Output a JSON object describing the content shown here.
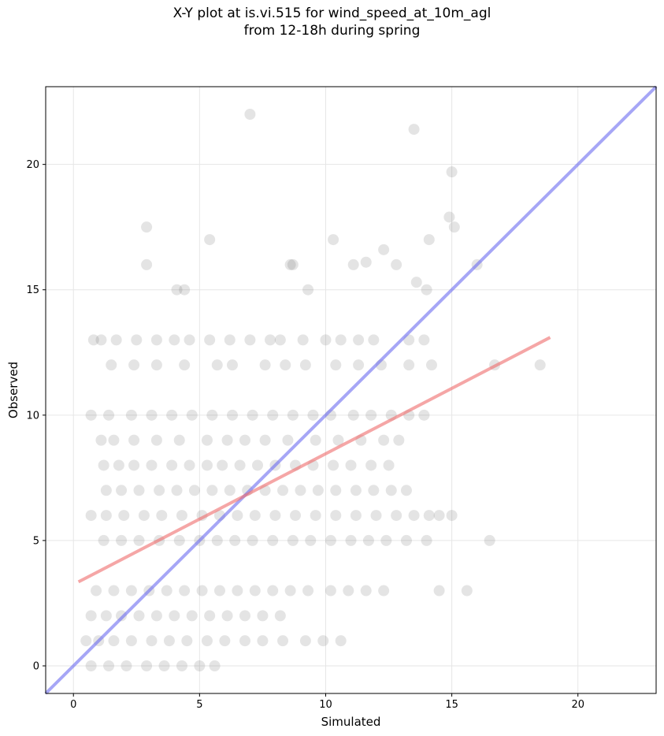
{
  "chart_data": {
    "type": "scatter",
    "title_line1": "X-Y plot at is.vi.515 for wind_speed_at_10m_agl",
    "title_line2": "from 12-18h during spring",
    "xlabel": "Simulated",
    "ylabel": "Observed",
    "xlim": [
      -1.1,
      23.1
    ],
    "ylim": [
      -1.1,
      23.1
    ],
    "xticks": [
      0,
      5,
      10,
      15,
      20
    ],
    "yticks": [
      0,
      5,
      10,
      15,
      20
    ],
    "grid": true,
    "point_color": "#555555",
    "identity_line": {
      "color": "#6b6bf0",
      "x": [
        -1.1,
        23.1
      ],
      "y": [
        -1.1,
        23.1
      ]
    },
    "regression_line": {
      "color": "#ee6b6b",
      "x": [
        0.2,
        18.9
      ],
      "y": [
        3.35,
        13.1
      ]
    },
    "points": {
      "x": [
        7.0,
        13.5,
        15.0,
        14.9,
        15.1,
        2.9,
        5.4,
        2.9,
        10.3,
        16.0,
        12.3,
        14.1,
        4.1,
        4.4,
        8.6,
        8.7,
        9.3,
        11.1,
        11.6,
        12.8,
        13.6,
        14.0,
        0.8,
        1.1,
        1.7,
        2.5,
        3.3,
        4.0,
        4.6,
        5.4,
        6.2,
        7.0,
        7.8,
        8.2,
        9.1,
        10.0,
        10.6,
        11.3,
        11.9,
        13.3,
        13.9,
        1.5,
        2.4,
        3.3,
        4.4,
        5.7,
        6.3,
        7.6,
        8.4,
        9.2,
        10.4,
        11.3,
        12.2,
        13.3,
        14.2,
        16.7,
        18.5,
        0.7,
        1.4,
        2.3,
        3.1,
        3.9,
        4.7,
        5.5,
        6.3,
        7.1,
        7.9,
        8.7,
        9.5,
        10.2,
        11.1,
        11.8,
        12.6,
        13.3,
        13.9,
        1.1,
        1.6,
        2.4,
        3.3,
        4.2,
        5.3,
        6.1,
        6.8,
        7.6,
        8.5,
        9.6,
        10.5,
        11.4,
        12.3,
        12.9,
        1.2,
        1.8,
        2.4,
        3.1,
        3.9,
        4.6,
        5.3,
        5.9,
        6.6,
        7.3,
        8.0,
        8.8,
        9.5,
        10.3,
        11.0,
        11.8,
        12.5,
        1.3,
        1.9,
        2.6,
        3.4,
        4.1,
        4.8,
        5.5,
        6.2,
        6.9,
        7.6,
        8.3,
        9.0,
        9.7,
        10.4,
        11.2,
        11.9,
        12.6,
        13.2,
        0.7,
        1.3,
        2.0,
        2.8,
        3.5,
        4.3,
        5.1,
        5.8,
        6.5,
        7.2,
        8.0,
        8.8,
        9.6,
        10.4,
        11.2,
        12.0,
        12.8,
        13.5,
        14.1,
        14.5,
        15.0,
        16.5,
        1.2,
        1.9,
        2.6,
        3.4,
        4.2,
        5.0,
        5.7,
        6.4,
        7.1,
        7.9,
        8.7,
        9.4,
        10.2,
        11.0,
        11.7,
        12.4,
        13.2,
        14.0,
        0.9,
        1.6,
        2.3,
        3.0,
        3.7,
        4.4,
        5.1,
        5.8,
        6.5,
        7.2,
        7.9,
        8.6,
        9.3,
        10.2,
        10.9,
        11.6,
        12.3,
        14.5,
        15.6,
        0.7,
        1.3,
        1.9,
        2.6,
        3.3,
        4.0,
        4.7,
        5.4,
        6.1,
        6.8,
        7.5,
        8.2,
        0.5,
        1.0,
        1.6,
        2.3,
        3.1,
        3.8,
        4.5,
        5.3,
        6.0,
        6.8,
        7.5,
        8.3,
        9.2,
        9.9,
        10.6,
        0.7,
        1.4,
        2.1,
        2.9,
        3.6,
        4.3,
        5.0,
        5.6
      ],
      "y": [
        22.0,
        21.4,
        19.7,
        17.9,
        17.5,
        17.5,
        17.0,
        16.0,
        17.0,
        16.0,
        16.6,
        17.0,
        15.0,
        15.0,
        16.0,
        16.0,
        15.0,
        16.0,
        16.1,
        16.0,
        15.3,
        15.0,
        13.0,
        13.0,
        13.0,
        13.0,
        13.0,
        13.0,
        13.0,
        13.0,
        13.0,
        13.0,
        13.0,
        13.0,
        13.0,
        13.0,
        13.0,
        13.0,
        13.0,
        13.0,
        13.0,
        12.0,
        12.0,
        12.0,
        12.0,
        12.0,
        12.0,
        12.0,
        12.0,
        12.0,
        12.0,
        12.0,
        12.0,
        12.0,
        12.0,
        12.0,
        12.0,
        10.0,
        10.0,
        10.0,
        10.0,
        10.0,
        10.0,
        10.0,
        10.0,
        10.0,
        10.0,
        10.0,
        10.0,
        10.0,
        10.0,
        10.0,
        10.0,
        10.0,
        10.0,
        9.0,
        9.0,
        9.0,
        9.0,
        9.0,
        9.0,
        9.0,
        9.0,
        9.0,
        9.0,
        9.0,
        9.0,
        9.0,
        9.0,
        9.0,
        8.0,
        8.0,
        8.0,
        8.0,
        8.0,
        8.0,
        8.0,
        8.0,
        8.0,
        8.0,
        8.0,
        8.0,
        8.0,
        8.0,
        8.0,
        8.0,
        8.0,
        7.0,
        7.0,
        7.0,
        7.0,
        7.0,
        7.0,
        7.0,
        7.0,
        7.0,
        7.0,
        7.0,
        7.0,
        7.0,
        7.0,
        7.0,
        7.0,
        7.0,
        7.0,
        6.0,
        6.0,
        6.0,
        6.0,
        6.0,
        6.0,
        6.0,
        6.0,
        6.0,
        6.0,
        6.0,
        6.0,
        6.0,
        6.0,
        6.0,
        6.0,
        6.0,
        6.0,
        6.0,
        6.0,
        6.0,
        5.0,
        5.0,
        5.0,
        5.0,
        5.0,
        5.0,
        5.0,
        5.0,
        5.0,
        5.0,
        5.0,
        5.0,
        5.0,
        5.0,
        5.0,
        5.0,
        5.0,
        5.0,
        5.0,
        3.0,
        3.0,
        3.0,
        3.0,
        3.0,
        3.0,
        3.0,
        3.0,
        3.0,
        3.0,
        3.0,
        3.0,
        3.0,
        3.0,
        3.0,
        3.0,
        3.0,
        3.0,
        3.0,
        2.0,
        2.0,
        2.0,
        2.0,
        2.0,
        2.0,
        2.0,
        2.0,
        2.0,
        2.0,
        2.0,
        2.0,
        1.0,
        1.0,
        1.0,
        1.0,
        1.0,
        1.0,
        1.0,
        1.0,
        1.0,
        1.0,
        1.0,
        1.0,
        1.0,
        1.0,
        1.0,
        0.0,
        0.0,
        0.0,
        0.0,
        0.0,
        0.0,
        0.0,
        0.0
      ]
    }
  }
}
